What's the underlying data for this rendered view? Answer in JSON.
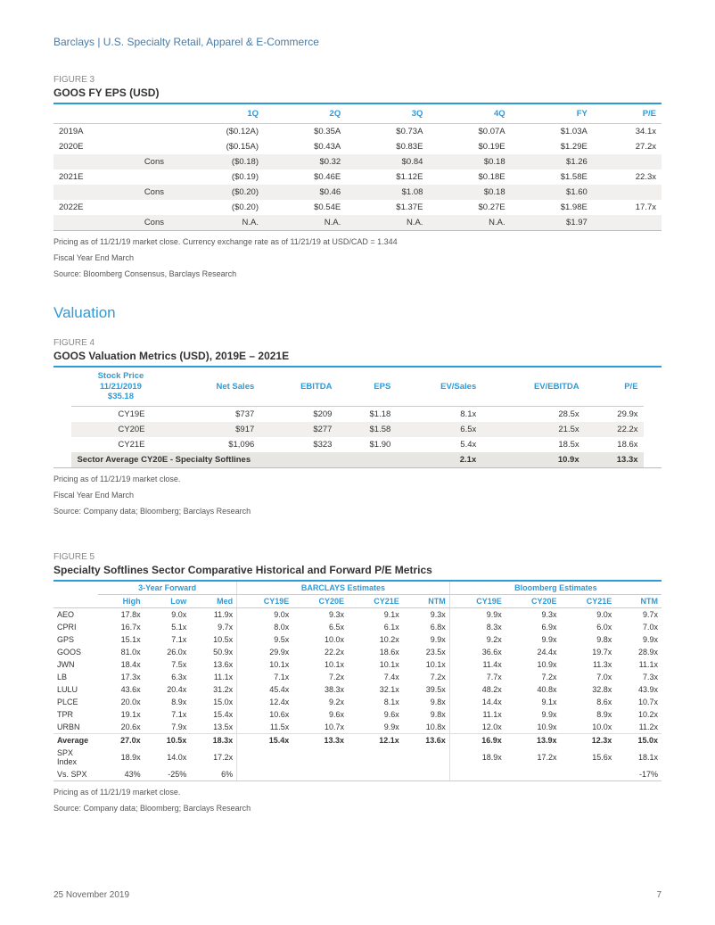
{
  "header": "Barclays | U.S. Specialty Retail, Apparel & E-Commerce",
  "footer": {
    "date": "25 November 2019",
    "page": "7"
  },
  "colors": {
    "accent": "#2e9bd6",
    "header_text": "#4a7ba6",
    "band": "#f1f0ee",
    "sector_band": "#e8e6e2"
  },
  "fig3": {
    "label": "FIGURE 3",
    "title": "GOOS FY EPS (USD)",
    "columns": [
      "",
      "",
      "1Q",
      "2Q",
      "3Q",
      "4Q",
      "FY",
      "P/E"
    ],
    "rows": [
      {
        "band": false,
        "cells": [
          "2019A",
          "",
          "($0.12A)",
          "$0.35A",
          "$0.73A",
          "$0.07A",
          "$1.03A",
          "34.1x"
        ]
      },
      {
        "band": false,
        "cells": [
          "2020E",
          "",
          "($0.15A)",
          "$0.43A",
          "$0.83E",
          "$0.19E",
          "$1.29E",
          "27.2x"
        ]
      },
      {
        "band": true,
        "cells": [
          "",
          "Cons",
          "($0.18)",
          "$0.32",
          "$0.84",
          "$0.18",
          "$1.26",
          ""
        ]
      },
      {
        "band": false,
        "cells": [
          "2021E",
          "",
          "($0.19)",
          "$0.46E",
          "$1.12E",
          "$0.18E",
          "$1.58E",
          "22.3x"
        ]
      },
      {
        "band": true,
        "cells": [
          "",
          "Cons",
          "($0.20)",
          "$0.46",
          "$1.08",
          "$0.18",
          "$1.60",
          ""
        ]
      },
      {
        "band": false,
        "cells": [
          "2022E",
          "",
          "($0.20)",
          "$0.54E",
          "$1.37E",
          "$0.27E",
          "$1.98E",
          "17.7x"
        ]
      },
      {
        "band": true,
        "cells": [
          "",
          "Cons",
          "N.A.",
          "N.A.",
          "N.A.",
          "N.A.",
          "$1.97",
          ""
        ]
      }
    ],
    "notes": [
      "Pricing as of 11/21/19 market close. Currency exchange rate as of 11/21/19 at USD/CAD = 1.344",
      "Fiscal Year End March",
      "Source: Bloomberg Consensus, Barclays Research"
    ]
  },
  "valuation_heading": "Valuation",
  "fig4": {
    "label": "FIGURE 4",
    "title": "GOOS Valuation Metrics (USD), 2019E – 2021E",
    "stock_header": {
      "l1": "Stock Price",
      "l2": "11/21/2019",
      "l3": "$35.18"
    },
    "columns": [
      "Net Sales",
      "EBITDA",
      "EPS",
      "EV/Sales",
      "EV/EBITDA",
      "P/E"
    ],
    "rows": [
      {
        "band": false,
        "label": "CY19E",
        "cells": [
          "$737",
          "$209",
          "$1.18",
          "8.1x",
          "28.5x",
          "29.9x"
        ]
      },
      {
        "band": true,
        "label": "CY20E",
        "cells": [
          "$917",
          "$277",
          "$1.58",
          "6.5x",
          "21.5x",
          "22.2x"
        ]
      },
      {
        "band": false,
        "label": "CY21E",
        "cells": [
          "$1,096",
          "$323",
          "$1.90",
          "5.4x",
          "18.5x",
          "18.6x"
        ]
      }
    ],
    "sector": {
      "label": "Sector Average CY20E - Specialty Softlines",
      "cells": [
        "",
        "",
        "",
        "2.1x",
        "10.9x",
        "13.3x"
      ]
    },
    "notes": [
      "Pricing as of 11/21/19 market close.",
      "Fiscal Year End March",
      "Source: Company data; Bloomberg; Barclays Research"
    ]
  },
  "fig5": {
    "label": "FIGURE 5",
    "title": "Specialty Softlines Sector Comparative Historical and Forward P/E Metrics",
    "groups": [
      "3-Year Forward",
      "BARCLAYS Estimates",
      "Bloomberg Estimates"
    ],
    "sub": [
      "High",
      "Low",
      "Med",
      "CY19E",
      "CY20E",
      "CY21E",
      "NTM",
      "CY19E",
      "CY20E",
      "CY21E",
      "NTM"
    ],
    "rows": [
      {
        "t": "AEO",
        "c": [
          "17.8x",
          "9.0x",
          "11.9x",
          "9.0x",
          "9.3x",
          "9.1x",
          "9.3x",
          "9.9x",
          "9.3x",
          "9.0x",
          "9.7x"
        ]
      },
      {
        "t": "CPRI",
        "c": [
          "16.7x",
          "5.1x",
          "9.7x",
          "8.0x",
          "6.5x",
          "6.1x",
          "6.8x",
          "8.3x",
          "6.9x",
          "6.0x",
          "7.0x"
        ]
      },
      {
        "t": "GPS",
        "c": [
          "15.1x",
          "7.1x",
          "10.5x",
          "9.5x",
          "10.0x",
          "10.2x",
          "9.9x",
          "9.2x",
          "9.9x",
          "9.8x",
          "9.9x"
        ]
      },
      {
        "t": "GOOS",
        "c": [
          "81.0x",
          "26.0x",
          "50.9x",
          "29.9x",
          "22.2x",
          "18.6x",
          "23.5x",
          "36.6x",
          "24.4x",
          "19.7x",
          "28.9x"
        ]
      },
      {
        "t": "JWN",
        "c": [
          "18.4x",
          "7.5x",
          "13.6x",
          "10.1x",
          "10.1x",
          "10.1x",
          "10.1x",
          "11.4x",
          "10.9x",
          "11.3x",
          "11.1x"
        ]
      },
      {
        "t": "LB",
        "c": [
          "17.3x",
          "6.3x",
          "11.1x",
          "7.1x",
          "7.2x",
          "7.4x",
          "7.2x",
          "7.7x",
          "7.2x",
          "7.0x",
          "7.3x"
        ]
      },
      {
        "t": "LULU",
        "c": [
          "43.6x",
          "20.4x",
          "31.2x",
          "45.4x",
          "38.3x",
          "32.1x",
          "39.5x",
          "48.2x",
          "40.8x",
          "32.8x",
          "43.9x"
        ]
      },
      {
        "t": "PLCE",
        "c": [
          "20.0x",
          "8.9x",
          "15.0x",
          "12.4x",
          "9.2x",
          "8.1x",
          "9.8x",
          "14.4x",
          "9.1x",
          "8.6x",
          "10.7x"
        ]
      },
      {
        "t": "TPR",
        "c": [
          "19.1x",
          "7.1x",
          "15.4x",
          "10.6x",
          "9.6x",
          "9.6x",
          "9.8x",
          "11.1x",
          "9.9x",
          "8.9x",
          "10.2x"
        ]
      },
      {
        "t": "URBN",
        "c": [
          "20.6x",
          "7.9x",
          "13.5x",
          "11.5x",
          "10.7x",
          "9.9x",
          "10.8x",
          "12.0x",
          "10.9x",
          "10.0x",
          "11.2x"
        ]
      }
    ],
    "avg": {
      "t": "Average",
      "c": [
        "27.0x",
        "10.5x",
        "18.3x",
        "15.4x",
        "13.3x",
        "12.1x",
        "13.6x",
        "16.9x",
        "13.9x",
        "12.3x",
        "15.0x"
      ]
    },
    "spx": {
      "t": "SPX Index",
      "c": [
        "18.9x",
        "14.0x",
        "17.2x",
        "",
        "",
        "",
        "",
        "18.9x",
        "17.2x",
        "15.6x",
        "18.1x"
      ]
    },
    "vsspx": {
      "t": "Vs. SPX",
      "c": [
        "43%",
        "-25%",
        "6%",
        "",
        "",
        "",
        "",
        "",
        "",
        "",
        "-17%"
      ]
    },
    "notes": [
      "Pricing as of 11/21/19 market close.",
      "Source: Company data; Bloomberg; Barclays Research"
    ]
  }
}
